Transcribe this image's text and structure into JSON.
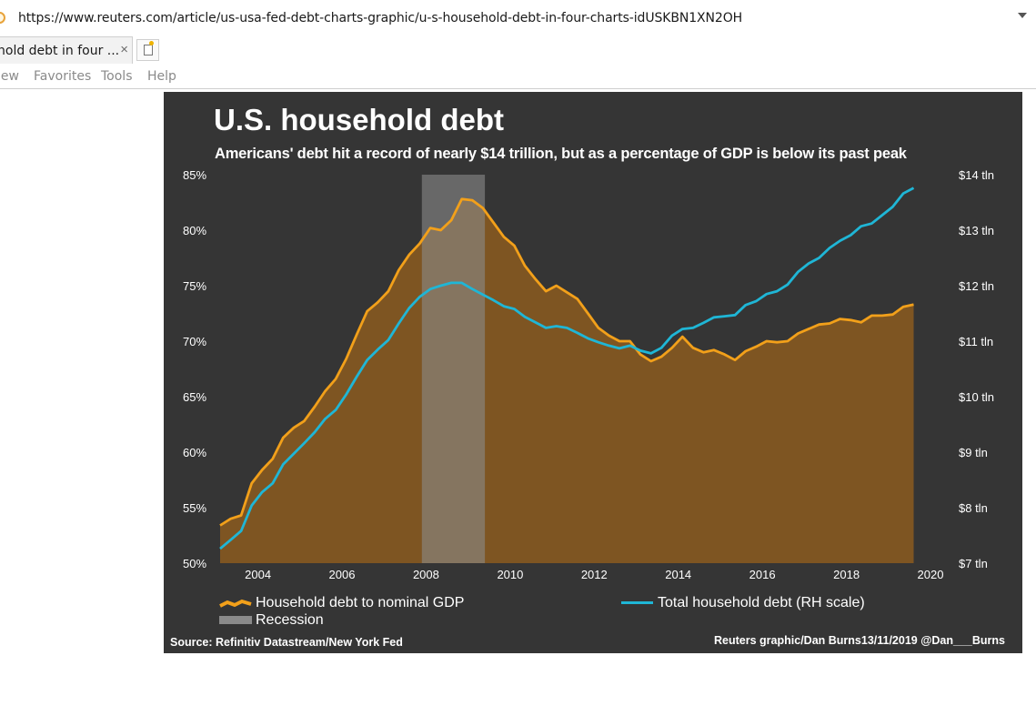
{
  "browser": {
    "url": "https://www.reuters.com/article/us-usa-fed-debt-charts-graphic/u-s-household-debt-in-four-charts-idUSKBN1XN2OH",
    "tab_title": "hold debt in four ...",
    "tab_close": "×",
    "menu": [
      "iew",
      "Favorites",
      "Tools",
      "Help"
    ]
  },
  "colors": {
    "panel": "#353535",
    "debt_gdp_line": "#f2a01a",
    "debt_gdp_fill": "#7e5522",
    "total_debt_line": "#1fb6d6",
    "recession": "#8a8a8a"
  },
  "chart_data": {
    "type": "line",
    "title": "U.S. household debt",
    "subtitle": "Americans' debt hit a record of nearly $14 trillion, but as a percentage of GDP is below its past peak",
    "x_range": [
      2003.1,
      2020
    ],
    "x_ticks": [
      2004,
      2006,
      2008,
      2010,
      2012,
      2014,
      2016,
      2018,
      2020
    ],
    "x_tick_labels": [
      "2004",
      "2006",
      "2008",
      "2010",
      "2012",
      "2014",
      "2016",
      "2018",
      "2020"
    ],
    "y_left_range": [
      50,
      85
    ],
    "y_left_ticks": [
      85,
      80,
      75,
      70,
      65,
      60,
      55,
      50
    ],
    "y_left_tick_labels": [
      "85%",
      "80%",
      "75%",
      "70%",
      "65%",
      "60%",
      "55%",
      "50%"
    ],
    "y_right_range": [
      7,
      14
    ],
    "y_right_ticks": [
      14,
      13,
      12,
      11,
      10,
      9,
      8,
      7
    ],
    "y_right_tick_labels": [
      "$14 tln",
      "$13 tln",
      "$12 tln",
      "$11 tln",
      "$10 tln",
      "$9 tln",
      "$8 tln",
      "$7 tln"
    ],
    "recession": {
      "start": 2007.9,
      "end": 2009.4,
      "label": "Recession"
    },
    "series": [
      {
        "name": "Household debt to nominal GDP",
        "axis": "left",
        "style": "area",
        "x": [
          2003.1,
          2003.35,
          2003.6,
          2003.85,
          2004.1,
          2004.35,
          2004.6,
          2004.85,
          2005.1,
          2005.35,
          2005.6,
          2005.85,
          2006.1,
          2006.35,
          2006.6,
          2006.85,
          2007.1,
          2007.35,
          2007.6,
          2007.85,
          2008.1,
          2008.35,
          2008.6,
          2008.85,
          2009.1,
          2009.35,
          2009.6,
          2009.85,
          2010.1,
          2010.35,
          2010.6,
          2010.85,
          2011.1,
          2011.35,
          2011.6,
          2011.85,
          2012.1,
          2012.35,
          2012.6,
          2012.85,
          2013.1,
          2013.35,
          2013.6,
          2013.85,
          2014.1,
          2014.35,
          2014.6,
          2014.85,
          2015.1,
          2015.35,
          2015.6,
          2015.85,
          2016.1,
          2016.35,
          2016.6,
          2016.85,
          2017.1,
          2017.35,
          2017.6,
          2017.85,
          2018.1,
          2018.35,
          2018.6,
          2018.85,
          2019.1,
          2019.35,
          2019.6
        ],
        "values": [
          53.4,
          54,
          54.3,
          57.2,
          58.4,
          59.4,
          61.3,
          62.2,
          62.8,
          64.1,
          65.5,
          66.6,
          68.4,
          70.6,
          72.7,
          73.5,
          74.5,
          76.4,
          77.8,
          78.8,
          80.2,
          80,
          80.9,
          82.8,
          82.7,
          82,
          80.7,
          79.4,
          78.6,
          76.8,
          75.6,
          74.5,
          75,
          74.4,
          73.8,
          72.5,
          71.2,
          70.5,
          70,
          70,
          68.8,
          68.2,
          68.6,
          69.4,
          70.4,
          69.4,
          69,
          69.2,
          68.8,
          68.3,
          69.1,
          69.5,
          70,
          69.9,
          70,
          70.7,
          71.1,
          71.5,
          71.6,
          72,
          71.9,
          71.7,
          72.3,
          72.3,
          72.4,
          73.1,
          73.3
        ]
      },
      {
        "name": "Total household debt (RH scale)",
        "axis": "right",
        "style": "line",
        "x": [
          2003.1,
          2003.35,
          2003.6,
          2003.85,
          2004.1,
          2004.35,
          2004.6,
          2004.85,
          2005.1,
          2005.35,
          2005.6,
          2005.85,
          2006.1,
          2006.35,
          2006.6,
          2006.85,
          2007.1,
          2007.35,
          2007.6,
          2007.85,
          2008.1,
          2008.35,
          2008.6,
          2008.85,
          2009.1,
          2009.35,
          2009.6,
          2009.85,
          2010.1,
          2010.35,
          2010.6,
          2010.85,
          2011.1,
          2011.35,
          2011.6,
          2011.85,
          2012.1,
          2012.35,
          2012.6,
          2012.85,
          2013.1,
          2013.35,
          2013.6,
          2013.85,
          2014.1,
          2014.35,
          2014.6,
          2014.85,
          2015.1,
          2015.35,
          2015.6,
          2015.85,
          2016.1,
          2016.35,
          2016.6,
          2016.85,
          2017.1,
          2017.35,
          2017.6,
          2017.85,
          2018.1,
          2018.35,
          2018.6,
          2018.85,
          2019.1,
          2019.35,
          2019.6
        ],
        "values": [
          7.26,
          7.42,
          7.58,
          8.04,
          8.28,
          8.44,
          8.78,
          8.97,
          9.16,
          9.36,
          9.6,
          9.76,
          10.04,
          10.36,
          10.66,
          10.85,
          11.02,
          11.32,
          11.6,
          11.8,
          11.94,
          12,
          12.05,
          12.05,
          11.94,
          11.84,
          11.74,
          11.63,
          11.58,
          11.44,
          11.34,
          11.24,
          11.27,
          11.24,
          11.15,
          11.05,
          10.98,
          10.92,
          10.87,
          10.92,
          10.83,
          10.78,
          10.88,
          11.1,
          11.22,
          11.24,
          11.33,
          11.43,
          11.45,
          11.47,
          11.65,
          11.72,
          11.85,
          11.9,
          12.02,
          12.25,
          12.4,
          12.5,
          12.68,
          12.81,
          12.91,
          13.07,
          13.12,
          13.27,
          13.42,
          13.66,
          13.76
        ]
      }
    ],
    "legend": [
      {
        "label": "Household debt to nominal GDP"
      },
      {
        "label": "Recession"
      },
      {
        "label": "Total household debt (RH scale)"
      }
    ],
    "source": "Source: Refinitiv Datastream/New York Fed",
    "credit": "Reuters graphic/Dan Burns13/11/2019 @Dan___Burns"
  }
}
